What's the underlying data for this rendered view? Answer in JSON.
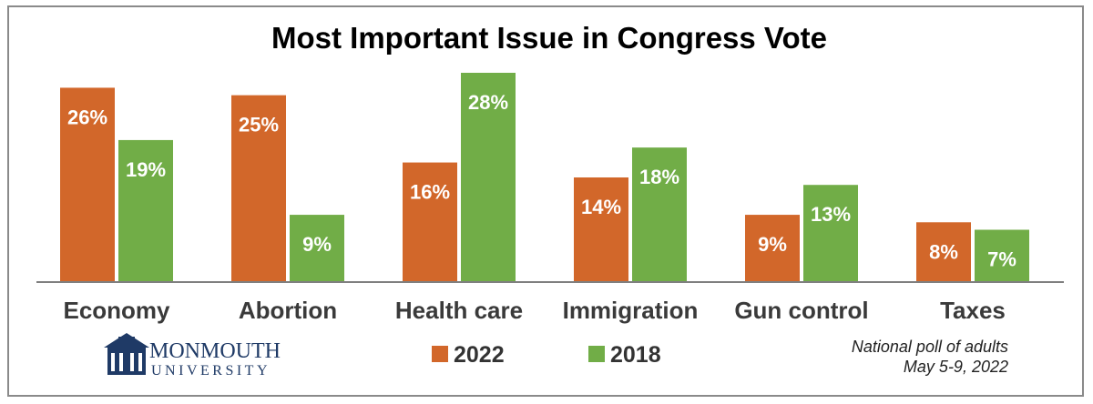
{
  "chart_data": {
    "type": "bar",
    "title": "Most Important Issue in Congress Vote",
    "categories": [
      "Economy",
      "Abortion",
      "Health care",
      "Immigration",
      "Gun control",
      "Taxes"
    ],
    "series": [
      {
        "name": "2022",
        "values": [
          26,
          25,
          16,
          14,
          9,
          8
        ],
        "labels": [
          "26%",
          "25%",
          "16%",
          "14%",
          "9%",
          "8%"
        ],
        "color": "#d2672a"
      },
      {
        "name": "2018",
        "values": [
          19,
          9,
          28,
          18,
          13,
          7
        ],
        "labels": [
          "19%",
          "9%",
          "28%",
          "18%",
          "13%",
          "7%"
        ],
        "color": "#71ad47"
      }
    ],
    "ylim": [
      0,
      28
    ],
    "grid": false,
    "legend_position": "bottom-center"
  },
  "logo": {
    "line1": "MONMOUTH",
    "line2": "UNIVERSITY",
    "color": "#1f3a66"
  },
  "source_note": {
    "line1": "National poll of adults",
    "line2": "May 5-9, 2022"
  },
  "colors": {
    "bar_2022": "#d2672a",
    "bar_2018": "#71ad47",
    "axis": "#7f7f7f"
  }
}
